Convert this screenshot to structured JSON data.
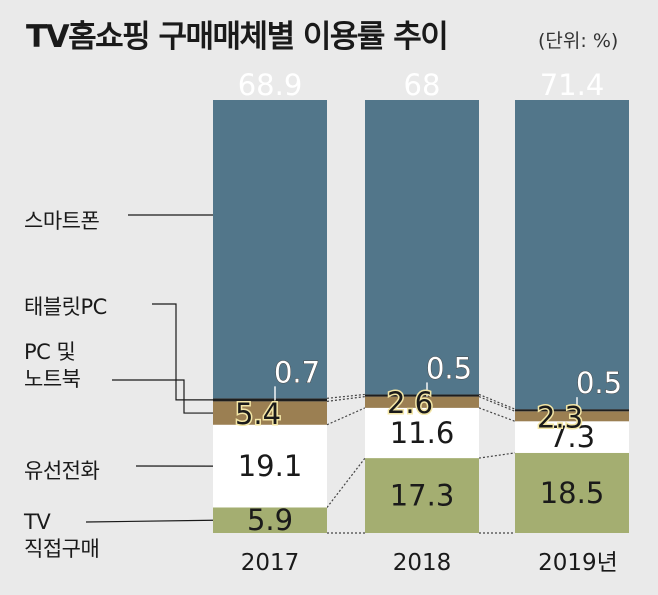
{
  "chart_data": {
    "type": "bar",
    "stacked": true,
    "title": "TV홈쇼핑 구매매체별 이용률 추이",
    "unit_label": "(단위: %)",
    "categories": [
      "2017",
      "2018",
      "2019년"
    ],
    "series": [
      {
        "name": "TV 직접구매",
        "label_lines": [
          "TV",
          "직접구매"
        ],
        "color": "#a4ae71",
        "values": [
          5.9,
          17.3,
          18.5
        ],
        "labels": [
          "5.9",
          "17.3",
          "18.5"
        ]
      },
      {
        "name": "유선전화",
        "label_lines": [
          "유선전화"
        ],
        "color": "#ffffff",
        "values": [
          19.1,
          11.6,
          7.3
        ],
        "labels": [
          "19.1",
          "11.6",
          "7.3"
        ]
      },
      {
        "name": "PC 및 노트북",
        "label_lines": [
          "PC 및",
          "노트북"
        ],
        "color": "#9b7f52",
        "values": [
          5.4,
          2.6,
          2.3
        ],
        "labels": [
          "5.4",
          "2.6",
          "2.3"
        ]
      },
      {
        "name": "태블릿PC",
        "label_lines": [
          "태블릿PC"
        ],
        "color": "#1e1e1e",
        "values": [
          0.7,
          0.5,
          0.5
        ],
        "labels": [
          "0.7",
          "0.5",
          "0.5"
        ]
      },
      {
        "name": "스마트폰",
        "label_lines": [
          "스마트폰"
        ],
        "color": "#52768a",
        "values": [
          68.9,
          68,
          71.4
        ],
        "labels": [
          "68.9",
          "68",
          "71.4"
        ]
      }
    ],
    "ylim": [
      0,
      100
    ],
    "xlabel": "",
    "ylabel": "",
    "legend": "left"
  }
}
